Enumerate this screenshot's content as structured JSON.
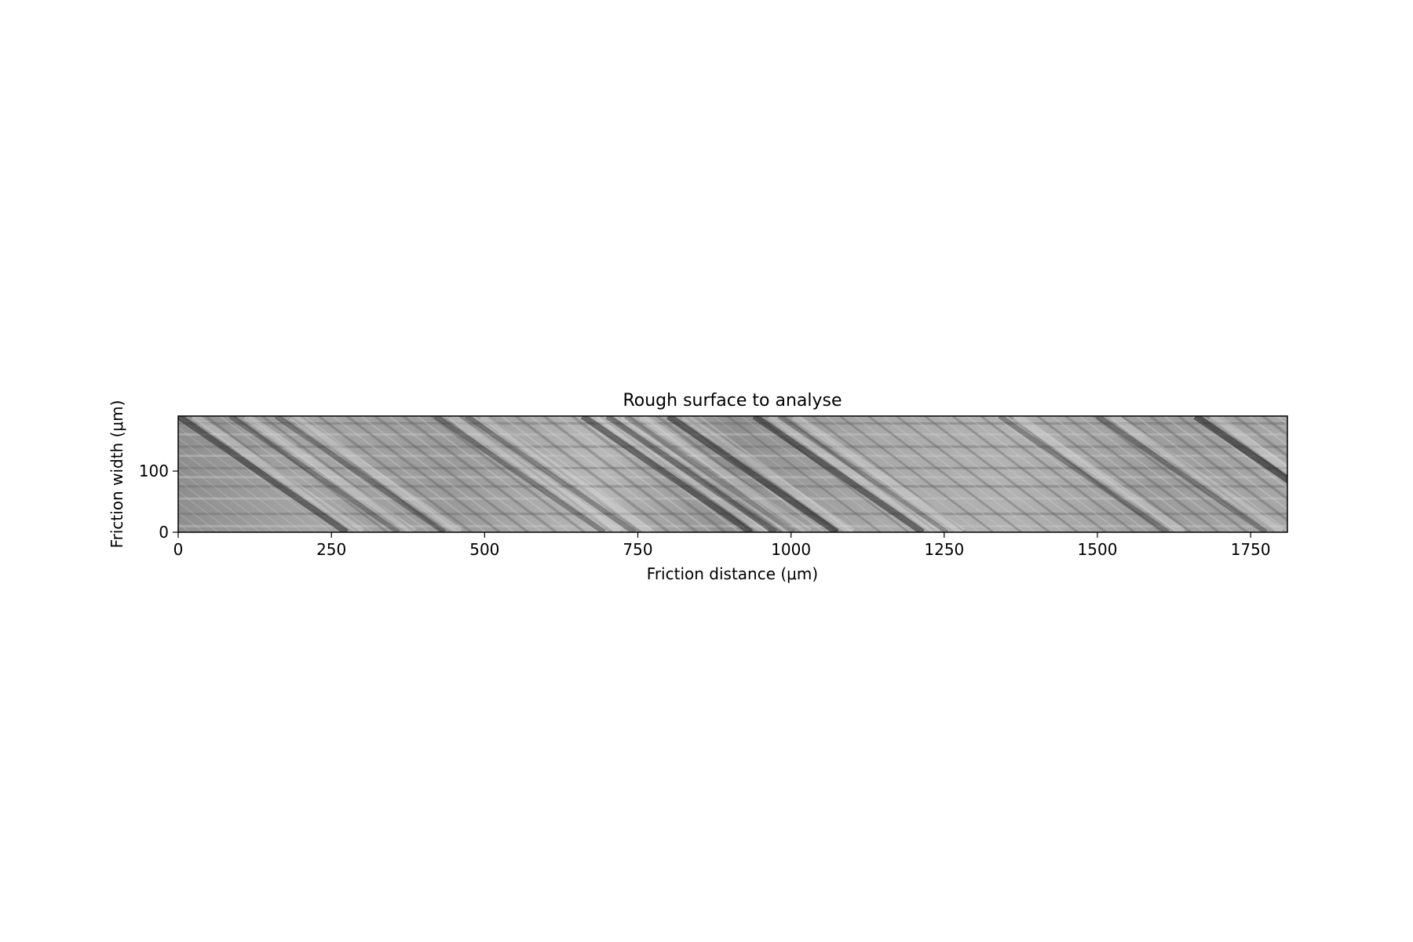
{
  "chart_data": {
    "type": "heatmap",
    "title": "Rough surface to analyse",
    "xlabel": "Friction distance (μm)",
    "ylabel": "Friction width (μm)",
    "xlim": [
      0,
      1810
    ],
    "ylim": [
      0,
      190
    ],
    "x_ticks": [
      {
        "value": 0,
        "label": "0"
      },
      {
        "value": 250,
        "label": "250"
      },
      {
        "value": 500,
        "label": "500"
      },
      {
        "value": 750,
        "label": "750"
      },
      {
        "value": 1000,
        "label": "1000"
      },
      {
        "value": 1250,
        "label": "1250"
      },
      {
        "value": 1500,
        "label": "1500"
      },
      {
        "value": 1750,
        "label": "1750"
      }
    ],
    "y_ticks": [
      {
        "value": 0,
        "label": "0"
      },
      {
        "value": 100,
        "label": "100"
      }
    ],
    "colormap": "grayscale",
    "grid": false,
    "legend": "none",
    "surface_features": {
      "diagonal_scratch_x_at_top": [
        0,
        85,
        160,
        420,
        470,
        660,
        700,
        730,
        800,
        940,
        980,
        1340,
        1500,
        1660
      ],
      "diagonal_scratch_darkness": [
        0.7,
        0.45,
        0.5,
        0.5,
        0.45,
        0.7,
        0.6,
        0.4,
        0.75,
        0.7,
        0.35,
        0.45,
        0.5,
        0.8
      ],
      "horizontal_band_y": [
        10,
        30,
        55,
        75,
        90,
        105,
        125,
        140,
        160,
        178
      ]
    }
  }
}
